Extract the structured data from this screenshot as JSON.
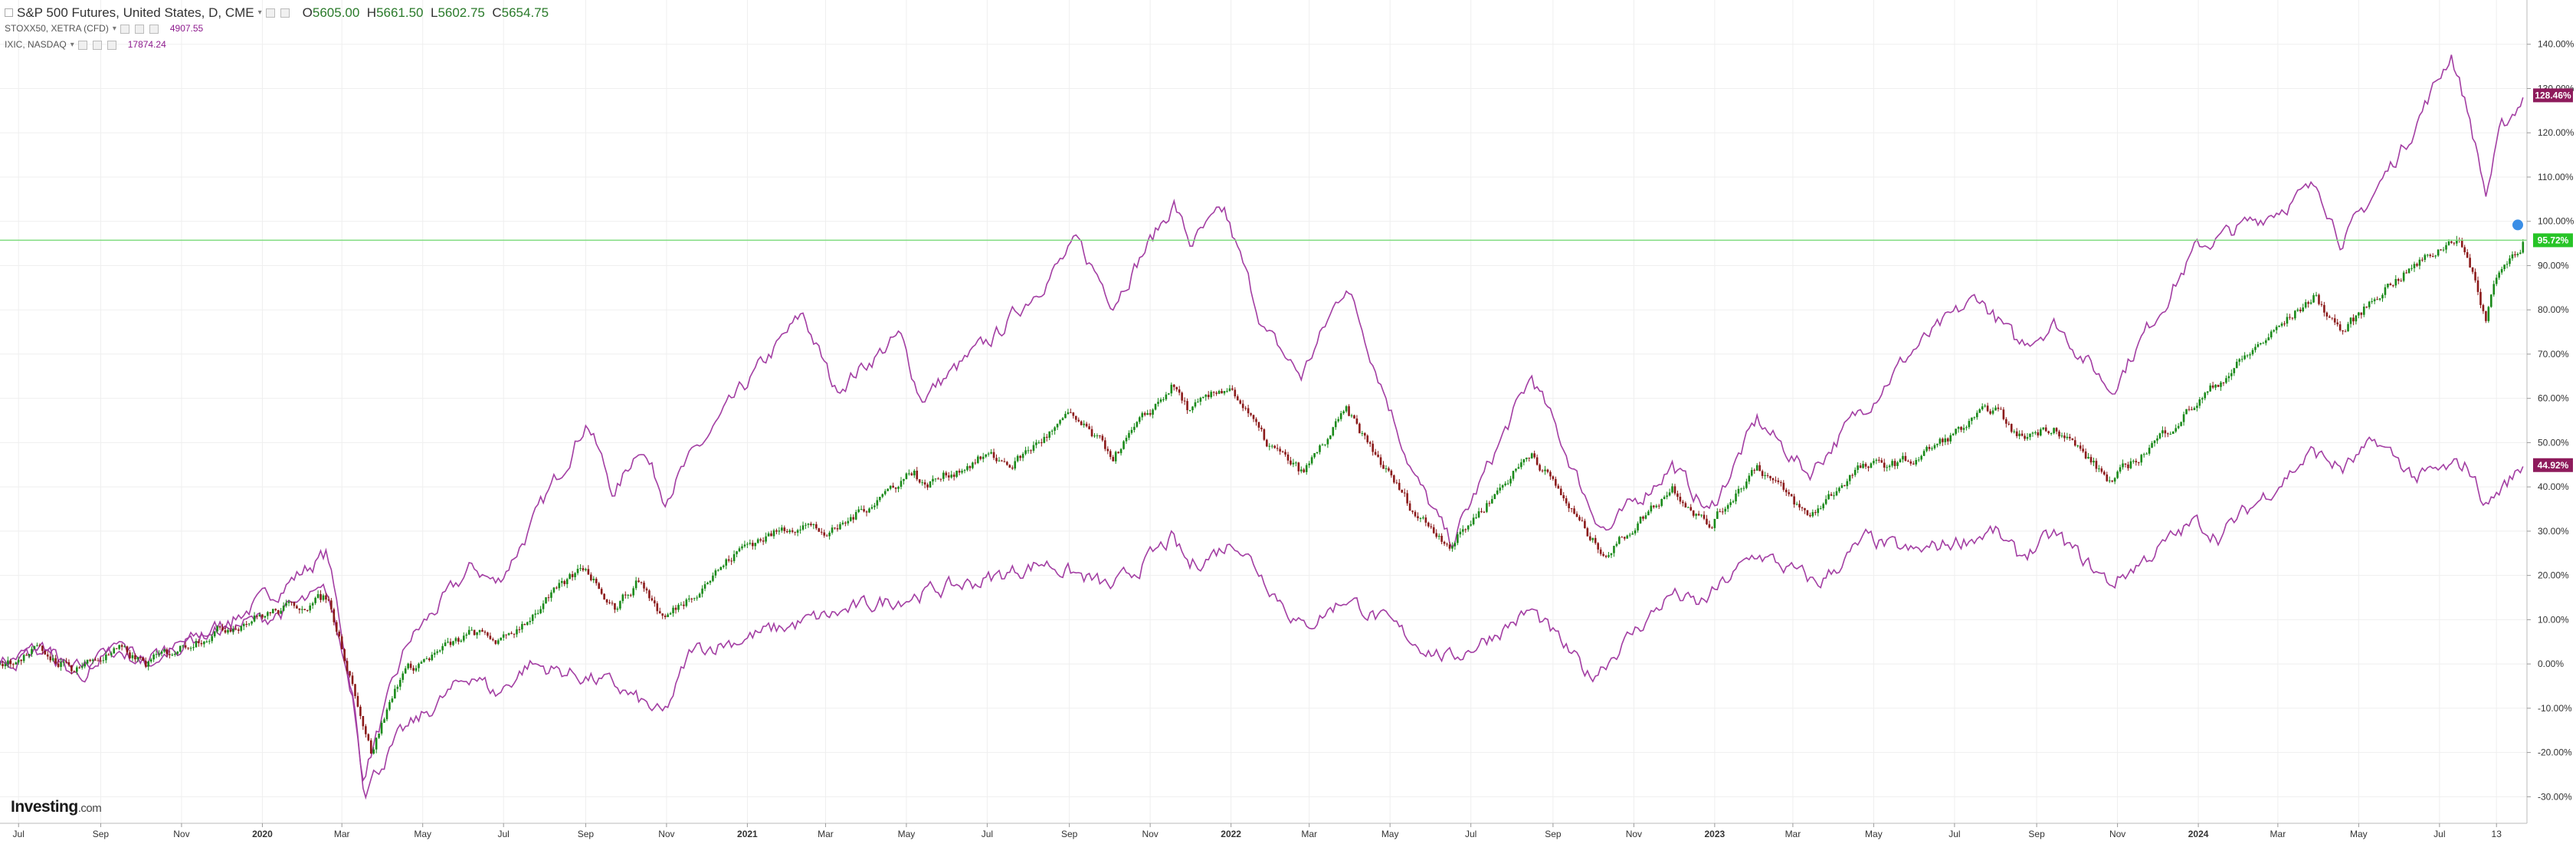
{
  "legend": {
    "main": {
      "title": "S&P 500 Futures, United States, D, CME",
      "open_key": "O",
      "open": "5605.00",
      "high_key": "H",
      "high": "5661.50",
      "low_key": "L",
      "low": "5602.75",
      "close_key": "C",
      "close": "5654.75"
    },
    "compare": [
      {
        "name": "STOXX50, XETRA (CFD)",
        "value": "4907.55"
      },
      {
        "name": "IXIC, NASDAQ",
        "value": "17874.24"
      }
    ]
  },
  "brand": {
    "name": "Investing",
    "suffix": ".com"
  },
  "colors": {
    "up": "#1a8a1a",
    "down": "#8b1a1a",
    "compare": "#a33ea3",
    "hline": "#7fdc7f",
    "badge_green": "#27c427",
    "badge_purple": "#8e1b5c"
  },
  "chart_data": {
    "type": "line",
    "y_unit": "%",
    "ylim": [
      -35,
      150
    ],
    "y_ticks": [
      "140.00%",
      "130.00%",
      "120.00%",
      "110.00%",
      "100.00%",
      "90.00%",
      "80.00%",
      "70.00%",
      "60.00%",
      "50.00%",
      "40.00%",
      "30.00%",
      "20.00%",
      "10.00%",
      "0.00%",
      "-10.00%",
      "-20.00%",
      "-30.00%"
    ],
    "y_tick_values": [
      140,
      130,
      120,
      110,
      100,
      90,
      80,
      70,
      60,
      50,
      40,
      30,
      20,
      10,
      0,
      -10,
      -20,
      -30
    ],
    "x_ticks": [
      "Jul",
      "Sep",
      "Nov",
      "2020",
      "Mar",
      "May",
      "Jul",
      "Sep",
      "Nov",
      "2021",
      "Mar",
      "May",
      "Jul",
      "Sep",
      "Nov",
      "2022",
      "Mar",
      "May",
      "Jul",
      "Sep",
      "Nov",
      "2023",
      "Mar",
      "May",
      "Jul",
      "Sep",
      "Nov",
      "2024",
      "Mar",
      "May",
      "Jul",
      "13"
    ],
    "x_tick_dates": [
      "2019-07-01",
      "2019-09-01",
      "2019-11-01",
      "2020-01-01",
      "2020-03-01",
      "2020-05-01",
      "2020-07-01",
      "2020-09-01",
      "2020-11-01",
      "2021-01-01",
      "2021-03-01",
      "2021-05-01",
      "2021-07-01",
      "2021-09-01",
      "2021-11-01",
      "2022-01-01",
      "2022-03-01",
      "2022-05-01",
      "2022-07-01",
      "2022-09-01",
      "2022-11-01",
      "2023-01-01",
      "2023-03-01",
      "2023-05-01",
      "2023-07-01",
      "2023-09-01",
      "2023-11-01",
      "2024-01-01",
      "2024-03-01",
      "2024-05-01",
      "2024-07-01",
      "2024-08-13"
    ],
    "x_start": "2019-06-17",
    "x_end": "2024-09-05",
    "grid": true,
    "horizontal_line": 95.72,
    "series": [
      {
        "style": "candlestick",
        "last_label": "95.72%",
        "points": [
          [
            "2019-06-17",
            0
          ],
          [
            "2019-07-15",
            3
          ],
          [
            "2019-08-10",
            -1
          ],
          [
            "2019-09-15",
            3
          ],
          [
            "2019-10-05",
            0
          ],
          [
            "2019-11-15",
            6
          ],
          [
            "2019-12-31",
            11
          ],
          [
            "2020-02-19",
            15
          ],
          [
            "2020-03-10",
            -5
          ],
          [
            "2020-03-23",
            -20
          ],
          [
            "2020-04-15",
            -2
          ],
          [
            "2020-06-08",
            7
          ],
          [
            "2020-06-30",
            5
          ],
          [
            "2020-08-31",
            22
          ],
          [
            "2020-09-23",
            13
          ],
          [
            "2020-10-12",
            19
          ],
          [
            "2020-10-30",
            10
          ],
          [
            "2020-12-31",
            27
          ],
          [
            "2021-02-12",
            32
          ],
          [
            "2021-03-04",
            29
          ],
          [
            "2021-05-07",
            44
          ],
          [
            "2021-05-12",
            40
          ],
          [
            "2021-06-30",
            47
          ],
          [
            "2021-07-19",
            45
          ],
          [
            "2021-09-02",
            56
          ],
          [
            "2021-10-04",
            47
          ],
          [
            "2021-11-18",
            63
          ],
          [
            "2021-12-01",
            57
          ],
          [
            "2021-12-31",
            63
          ],
          [
            "2022-01-27",
            50
          ],
          [
            "2022-02-24",
            43
          ],
          [
            "2022-03-29",
            57
          ],
          [
            "2022-05-20",
            34
          ],
          [
            "2022-06-16",
            27
          ],
          [
            "2022-08-16",
            48
          ],
          [
            "2022-09-30",
            28
          ],
          [
            "2022-10-12",
            25
          ],
          [
            "2022-11-30",
            40
          ],
          [
            "2022-12-28",
            31
          ],
          [
            "2023-02-02",
            45
          ],
          [
            "2023-03-13",
            33
          ],
          [
            "2023-04-18",
            44
          ],
          [
            "2023-05-31",
            46
          ],
          [
            "2023-07-31,",
            58
          ],
          [
            "2023-08-18",
            51
          ],
          [
            "2023-09-15",
            54
          ],
          [
            "2023-10-27",
            41
          ],
          [
            "2023-12-31",
            59
          ],
          [
            "2024-02-12",
            71
          ],
          [
            "2024-03-28",
            83
          ],
          [
            "2024-04-19",
            75
          ],
          [
            "2024-05-20",
            85
          ],
          [
            "2024-06-13",
            90
          ],
          [
            "2024-07-16",
            97
          ],
          [
            "2024-08-05",
            78
          ],
          [
            "2024-08-13",
            88
          ],
          [
            "2024-09-03",
            95.72
          ]
        ]
      },
      {
        "name": "IXIC, NASDAQ",
        "style": "line",
        "last_label": "128.46%",
        "points": [
          [
            "2019-06-17",
            0
          ],
          [
            "2019-07-20",
            4
          ],
          [
            "2019-08-10",
            -2
          ],
          [
            "2019-09-15",
            3
          ],
          [
            "2019-10-05",
            0
          ],
          [
            "2019-11-20",
            7
          ],
          [
            "2019-12-31",
            14
          ],
          [
            "2020-02-19",
            25
          ],
          [
            "2020-03-10",
            -8
          ],
          [
            "2020-03-16",
            -26
          ],
          [
            "2020-03-23",
            -20
          ],
          [
            "2020-04-20",
            5
          ],
          [
            "2020-06-08",
            22
          ],
          [
            "2020-06-26",
            18
          ],
          [
            "2020-07-20",
            30
          ],
          [
            "2020-09-02",
            55
          ],
          [
            "2020-09-23",
            38
          ],
          [
            "2020-10-12",
            50
          ],
          [
            "2020-10-30",
            38
          ],
          [
            "2020-12-31",
            63
          ],
          [
            "2021-02-12",
            79
          ],
          [
            "2021-03-08",
            62
          ],
          [
            "2021-04-26",
            74
          ],
          [
            "2021-05-12",
            60
          ],
          [
            "2021-07-07",
            74
          ],
          [
            "2021-09-07",
            95
          ],
          [
            "2021-10-04",
            82
          ],
          [
            "2021-11-19",
            104
          ],
          [
            "2021-12-01",
            95
          ],
          [
            "2021-12-27",
            102
          ],
          [
            "2022-01-27",
            75
          ],
          [
            "2022-02-23",
            65
          ],
          [
            "2022-03-29",
            86
          ],
          [
            "2022-05-20",
            42
          ],
          [
            "2022-06-16",
            27
          ],
          [
            "2022-08-16",
            65
          ],
          [
            "2022-09-30",
            35
          ],
          [
            "2022-10-12",
            30
          ],
          [
            "2022-11-30",
            45
          ],
          [
            "2022-12-28",
            34
          ],
          [
            "2023-02-02",
            55
          ],
          [
            "2023-03-13",
            43
          ],
          [
            "2023-04-18",
            56
          ],
          [
            "2023-05-31",
            71
          ],
          [
            "2023-07-19",
            83
          ],
          [
            "2023-08-18",
            72
          ],
          [
            "2023-09-15",
            77
          ],
          [
            "2023-10-27",
            62
          ],
          [
            "2023-12-31",
            94
          ],
          [
            "2024-02-12",
            100
          ],
          [
            "2024-04-01",
            108
          ],
          [
            "2024-04-19",
            95
          ],
          [
            "2024-06-06",
            118
          ],
          [
            "2024-07-10",
            138
          ],
          [
            "2024-07-24",
            123
          ],
          [
            "2024-08-05",
            106
          ],
          [
            "2024-08-16",
            120
          ],
          [
            "2024-09-03",
            128.46
          ]
        ]
      },
      {
        "name": "STOXX50, XETRA (CFD)",
        "style": "line",
        "last_label": "44.92%",
        "points": [
          [
            "2019-06-17",
            0
          ],
          [
            "2019-07-20",
            3
          ],
          [
            "2019-08-15",
            -3
          ],
          [
            "2019-09-15",
            4
          ],
          [
            "2019-10-05",
            1
          ],
          [
            "2019-11-20",
            7
          ],
          [
            "2019-12-31",
            10
          ],
          [
            "2020-02-19",
            16
          ],
          [
            "2020-03-10",
            -8
          ],
          [
            "2020-03-18",
            -28
          ],
          [
            "2020-04-15",
            -16
          ],
          [
            "2020-06-08",
            -2
          ],
          [
            "2020-06-26",
            -7
          ],
          [
            "2020-07-20",
            0
          ],
          [
            "2020-09-02",
            -3
          ],
          [
            "2020-09-23",
            -5
          ],
          [
            "2020-10-30",
            -12
          ],
          [
            "2020-11-20",
            3
          ],
          [
            "2020-12-31",
            6
          ],
          [
            "2021-03-31",
            13
          ],
          [
            "2021-05-12",
            16
          ],
          [
            "2021-06-30",
            19
          ],
          [
            "2021-08-13",
            23
          ],
          [
            "2021-10-04",
            17
          ],
          [
            "2021-11-17",
            28
          ],
          [
            "2021-12-01",
            22
          ],
          [
            "2022-01-05",
            28
          ],
          [
            "2022-02-24",
            8
          ],
          [
            "2022-03-29",
            15
          ],
          [
            "2022-05-20",
            5
          ],
          [
            "2022-06-16",
            1
          ],
          [
            "2022-08-16",
            12
          ],
          [
            "2022-09-29",
            -3
          ],
          [
            "2022-11-30",
            16
          ],
          [
            "2022-12-20",
            13
          ],
          [
            "2023-02-02",
            25
          ],
          [
            "2023-03-20",
            18
          ],
          [
            "2023-04-25",
            28
          ],
          [
            "2023-05-31",
            25
          ],
          [
            "2023-07-31",
            30
          ],
          [
            "2023-08-18",
            24
          ],
          [
            "2023-09-15",
            29
          ],
          [
            "2023-10-27",
            18
          ],
          [
            "2023-12-29",
            32
          ],
          [
            "2024-01-17",
            29
          ],
          [
            "2024-03-28",
            48
          ],
          [
            "2024-04-19",
            44
          ],
          [
            "2024-05-15",
            50
          ],
          [
            "2024-06-14",
            42
          ],
          [
            "2024-07-22",
            45
          ],
          [
            "2024-08-05",
            36
          ],
          [
            "2024-09-03",
            44.92
          ]
        ]
      }
    ]
  }
}
